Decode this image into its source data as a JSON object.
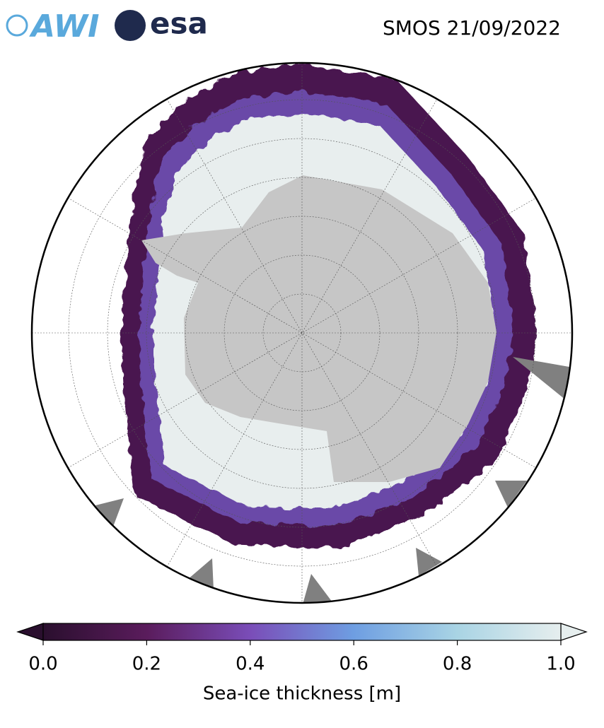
{
  "header": {
    "title": "SMOS 21/09/2022",
    "logos": [
      "AWI",
      "esa"
    ]
  },
  "chart_data": {
    "type": "colorbar",
    "label": "Sea-ice thickness [m]",
    "xlim": [
      0,
      1
    ],
    "xticks": [
      {
        "value": 0,
        "label": "0.0"
      },
      {
        "value": 0.2,
        "label": "0.2"
      },
      {
        "value": 0.4,
        "label": "0.4"
      },
      {
        "value": 0.6,
        "label": "0.6"
      },
      {
        "value": 0.8,
        "label": "0.8"
      },
      {
        "value": 1,
        "label": "1.0"
      }
    ],
    "colors": [
      "#2a0f2e",
      "#5a1c5c",
      "#7a4db8",
      "#6e9ee2",
      "#a9d4e4",
      "#e6eeee"
    ]
  }
}
